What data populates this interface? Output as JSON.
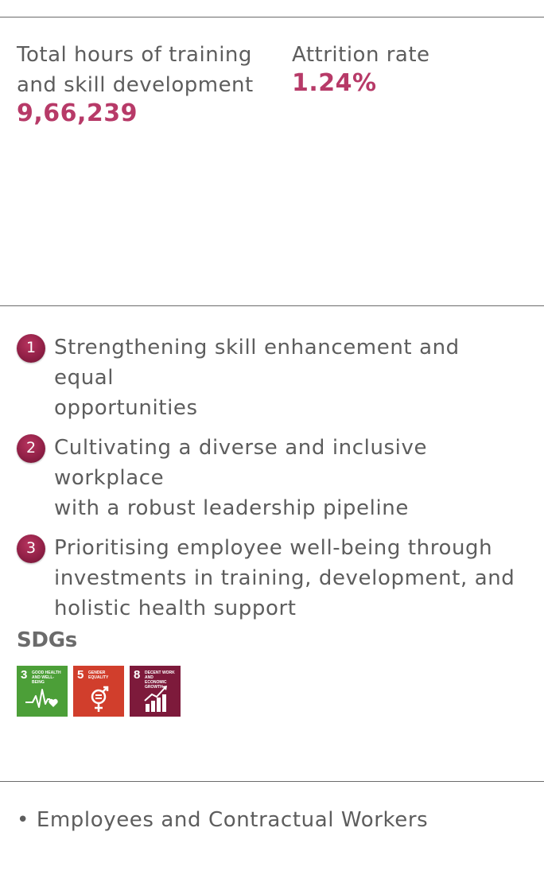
{
  "stats": [
    {
      "label_line1": "Total hours of training",
      "label_line2": "and skill development",
      "value": "9,66,239"
    },
    {
      "label_line1": "Attrition rate",
      "value": "1.24%"
    }
  ],
  "focus_areas": [
    {
      "num": "1",
      "line1": "Strengthening skill enhancement and equal",
      "line2": "opportunities"
    },
    {
      "num": "2",
      "line1": "Cultivating a diverse and inclusive workplace",
      "line2": "with a robust leadership pipeline"
    },
    {
      "num": "3",
      "line1": "Prioritising employee well-being through",
      "line2": "investments in training, development, and",
      "line3": "holistic health support"
    }
  ],
  "sdgs": {
    "title": "SDGs",
    "tiles": [
      {
        "num": "3",
        "name_line1": "GOOD HEALTH",
        "name_line2": "AND WELL-BEING",
        "color": "#4c9f38",
        "icon": "heartbeat-icon"
      },
      {
        "num": "5",
        "name_line1": "GENDER",
        "name_line2": "EQUALITY",
        "color": "#d13e2c",
        "icon": "gender-equality-icon"
      },
      {
        "num": "8",
        "name_line1": "DECENT WORK AND",
        "name_line2": "ECONOMIC GROWTH",
        "color": "#7d1a3b",
        "icon": "growth-chart-icon"
      }
    ]
  },
  "stakeholders": {
    "bullet": "•",
    "text": "Employees and Contractual Workers"
  },
  "colors": {
    "accent": "#b73a68",
    "text": "#5d5d5d",
    "rule": "#6b6b6b"
  }
}
